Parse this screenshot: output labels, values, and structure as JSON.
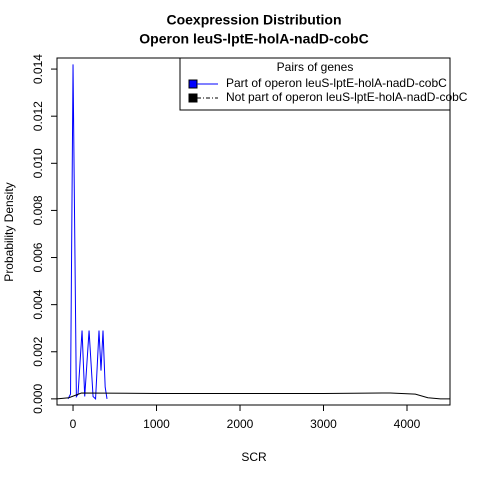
{
  "chart_data": {
    "type": "line",
    "title": "Coexpression Distribution",
    "subtitle": "Operon leuS-lptE-holA-nadD-cobC",
    "x_label": "SCR",
    "y_label": "Probability Density",
    "legend_title": "Pairs of genes",
    "legend": "top-right",
    "xlim": [
      -192,
      4515
    ],
    "ylim": [
      -0.00026,
      0.01447
    ],
    "xticks": [
      0,
      1000,
      2000,
      3000,
      4000
    ],
    "yticks": [
      {
        "value": 0,
        "label": "0.000"
      },
      {
        "value": 0.002,
        "label": "0.002"
      },
      {
        "value": 0.004,
        "label": "0.004"
      },
      {
        "value": 0.006,
        "label": "0.006"
      },
      {
        "value": 0.008,
        "label": "0.008"
      },
      {
        "value": 0.01,
        "label": "0.010"
      },
      {
        "value": 0.012,
        "label": "0.012"
      },
      {
        "value": 0.014,
        "label": "0.014"
      }
    ],
    "series": [
      {
        "name": "Part of operon leuS-lptE-holA-nadD-cobC",
        "color": "#0000ff",
        "x": [
          -60,
          -30,
          0,
          40,
          60,
          108,
          140,
          192,
          240,
          270,
          311,
          335,
          359,
          385,
          407
        ],
        "values": [
          0,
          0.0002,
          0.0142,
          0.0001,
          0.0002,
          0.0029,
          0.0001,
          0.0029,
          0.0001,
          0,
          0.0029,
          0.0012,
          0.0029,
          0.0005,
          0
        ]
      },
      {
        "name": "Not part of operon leuS-lptE-holA-nadD-cobC",
        "color": "#000000",
        "x": [
          -192,
          -50,
          100,
          1000,
          2000,
          3000,
          3800,
          4100,
          4250,
          4400,
          4515
        ],
        "values": [
          0,
          5e-05,
          0.00025,
          0.00023,
          0.00023,
          0.00023,
          0.00025,
          0.0002,
          5e-05,
          0,
          0
        ]
      }
    ]
  }
}
